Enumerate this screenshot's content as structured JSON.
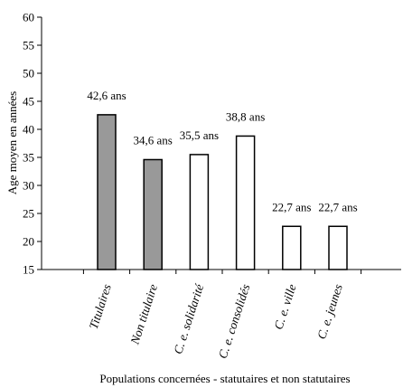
{
  "chart_data": {
    "type": "bar",
    "xlabel": "Populations concernées - statutaires et non statutaires",
    "ylabel": "Age moyen en années",
    "ylim": [
      15,
      60
    ],
    "yticks": [
      15,
      20,
      25,
      30,
      35,
      40,
      45,
      50,
      55,
      60
    ],
    "grid": false,
    "legend": "none",
    "categories": [
      "Titulaires",
      "Non titulaire",
      "C. e. solidarité",
      "C. e. consolidés",
      "C. e. ville",
      "C. e. jeunes"
    ],
    "values": [
      42.6,
      34.6,
      35.5,
      38.8,
      22.7,
      22.7
    ],
    "data_labels": [
      "42,6 ans",
      "34,6 ans",
      "35,5 ans",
      "38,8 ans",
      "22,7 ans",
      "22,7 ans"
    ],
    "colors": {
      "statutaires": "#999999",
      "non_statutaires": "#ffffff",
      "stroke": "#000000"
    },
    "bar_fill_groups": [
      "statutaires",
      "statutaires",
      "non_statutaires",
      "non_statutaires",
      "non_statutaires",
      "non_statutaires"
    ]
  }
}
